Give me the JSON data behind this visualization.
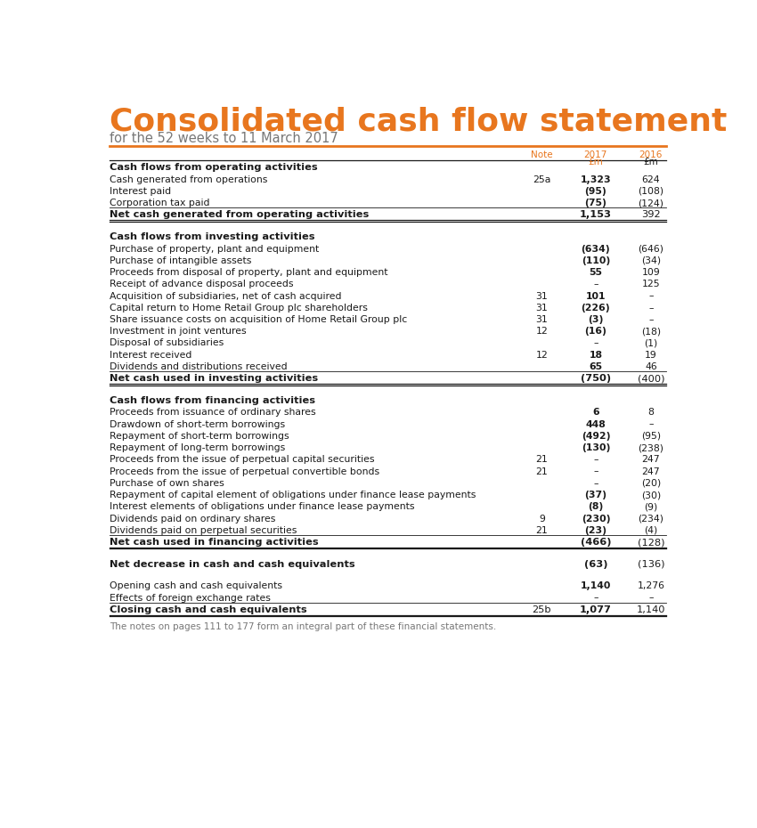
{
  "title": "Consolidated cash flow statement",
  "subtitle": "for the 52 weeks to 11 March 2017",
  "orange_color": "#E8761E",
  "footer": "The notes on pages 111 to 177 form an integral part of these financial statements.",
  "rows": [
    {
      "label": "Cash flows from operating activities",
      "note": "",
      "val2017": "",
      "val2016": "",
      "style": "section_header"
    },
    {
      "label": "Cash generated from operations",
      "note": "25a",
      "val2017": "1,323",
      "val2016": "624",
      "style": "normal",
      "bold2017": true
    },
    {
      "label": "Interest paid",
      "note": "",
      "val2017": "(95)",
      "val2016": "(108)",
      "style": "normal",
      "bold2017": true
    },
    {
      "label": "Corporation tax paid",
      "note": "",
      "val2017": "(75)",
      "val2016": "(124)",
      "style": "normal",
      "bold2017": true,
      "line_below": true
    },
    {
      "label": "Net cash generated from operating activities",
      "note": "",
      "val2017": "1,153",
      "val2016": "392",
      "style": "total",
      "line_below": true
    },
    {
      "label": "",
      "note": "",
      "val2017": "",
      "val2016": "",
      "style": "spacer"
    },
    {
      "label": "Cash flows from investing activities",
      "note": "",
      "val2017": "",
      "val2016": "",
      "style": "section_header"
    },
    {
      "label": "Purchase of property, plant and equipment",
      "note": "",
      "val2017": "(634)",
      "val2016": "(646)",
      "style": "normal",
      "bold2017": true
    },
    {
      "label": "Purchase of intangible assets",
      "note": "",
      "val2017": "(110)",
      "val2016": "(34)",
      "style": "normal",
      "bold2017": true
    },
    {
      "label": "Proceeds from disposal of property, plant and equipment",
      "note": "",
      "val2017": "55",
      "val2016": "109",
      "style": "normal",
      "bold2017": true
    },
    {
      "label": "Receipt of advance disposal proceeds",
      "note": "",
      "val2017": "–",
      "val2016": "125",
      "style": "normal",
      "bold2017": false
    },
    {
      "label": "Acquisition of subsidiaries, net of cash acquired",
      "note": "31",
      "val2017": "101",
      "val2016": "–",
      "style": "normal",
      "bold2017": true
    },
    {
      "label": "Capital return to Home Retail Group plc shareholders",
      "note": "31",
      "val2017": "(226)",
      "val2016": "–",
      "style": "normal",
      "bold2017": true
    },
    {
      "label": "Share issuance costs on acquisition of Home Retail Group plc",
      "note": "31",
      "val2017": "(3)",
      "val2016": "–",
      "style": "normal",
      "bold2017": true
    },
    {
      "label": "Investment in joint ventures",
      "note": "12",
      "val2017": "(16)",
      "val2016": "(18)",
      "style": "normal",
      "bold2017": true
    },
    {
      "label": "Disposal of subsidiaries",
      "note": "",
      "val2017": "–",
      "val2016": "(1)",
      "style": "normal",
      "bold2017": false
    },
    {
      "label": "Interest received",
      "note": "12",
      "val2017": "18",
      "val2016": "19",
      "style": "normal",
      "bold2017": true
    },
    {
      "label": "Dividends and distributions received",
      "note": "",
      "val2017": "65",
      "val2016": "46",
      "style": "normal",
      "bold2017": true,
      "line_below": true
    },
    {
      "label": "Net cash used in investing activities",
      "note": "",
      "val2017": "(750)",
      "val2016": "(400)",
      "style": "total",
      "line_below": true
    },
    {
      "label": "",
      "note": "",
      "val2017": "",
      "val2016": "",
      "style": "spacer"
    },
    {
      "label": "Cash flows from financing activities",
      "note": "",
      "val2017": "",
      "val2016": "",
      "style": "section_header"
    },
    {
      "label": "Proceeds from issuance of ordinary shares",
      "note": "",
      "val2017": "6",
      "val2016": "8",
      "style": "normal",
      "bold2017": true
    },
    {
      "label": "Drawdown of short-term borrowings",
      "note": "",
      "val2017": "448",
      "val2016": "–",
      "style": "normal",
      "bold2017": true
    },
    {
      "label": "Repayment of short-term borrowings",
      "note": "",
      "val2017": "(492)",
      "val2016": "(95)",
      "style": "normal",
      "bold2017": true
    },
    {
      "label": "Repayment of long-term borrowings",
      "note": "",
      "val2017": "(130)",
      "val2016": "(238)",
      "style": "normal",
      "bold2017": true
    },
    {
      "label": "Proceeds from the issue of perpetual capital securities",
      "note": "21",
      "val2017": "–",
      "val2016": "247",
      "style": "normal",
      "bold2017": false
    },
    {
      "label": "Proceeds from the issue of perpetual convertible bonds",
      "note": "21",
      "val2017": "–",
      "val2016": "247",
      "style": "normal",
      "bold2017": false
    },
    {
      "label": "Purchase of own shares",
      "note": "",
      "val2017": "–",
      "val2016": "(20)",
      "style": "normal",
      "bold2017": false
    },
    {
      "label": "Repayment of capital element of obligations under finance lease payments",
      "note": "",
      "val2017": "(37)",
      "val2016": "(30)",
      "style": "normal",
      "bold2017": true
    },
    {
      "label": "Interest elements of obligations under finance lease payments",
      "note": "",
      "val2017": "(8)",
      "val2016": "(9)",
      "style": "normal",
      "bold2017": true
    },
    {
      "label": "Dividends paid on ordinary shares",
      "note": "9",
      "val2017": "(230)",
      "val2016": "(234)",
      "style": "normal",
      "bold2017": true
    },
    {
      "label": "Dividends paid on perpetual securities",
      "note": "21",
      "val2017": "(23)",
      "val2016": "(4)",
      "style": "normal",
      "bold2017": true,
      "line_below": true
    },
    {
      "label": "Net cash used in financing activities",
      "note": "",
      "val2017": "(466)",
      "val2016": "(128)",
      "style": "total",
      "line_below": true
    },
    {
      "label": "",
      "note": "",
      "val2017": "",
      "val2016": "",
      "style": "spacer"
    },
    {
      "label": "Net decrease in cash and cash equivalents",
      "note": "",
      "val2017": "(63)",
      "val2016": "(136)",
      "style": "total_bold"
    },
    {
      "label": "",
      "note": "",
      "val2017": "",
      "val2016": "",
      "style": "spacer"
    },
    {
      "label": "Opening cash and cash equivalents",
      "note": "",
      "val2017": "1,140",
      "val2016": "1,276",
      "style": "normal",
      "bold2017": true
    },
    {
      "label": "Effects of foreign exchange rates",
      "note": "",
      "val2017": "–",
      "val2016": "–",
      "style": "normal",
      "bold2017": false,
      "line_below": true
    },
    {
      "label": "Closing cash and cash equivalents",
      "note": "25b",
      "val2017": "1,077",
      "val2016": "1,140",
      "style": "total",
      "line_below": true
    }
  ]
}
